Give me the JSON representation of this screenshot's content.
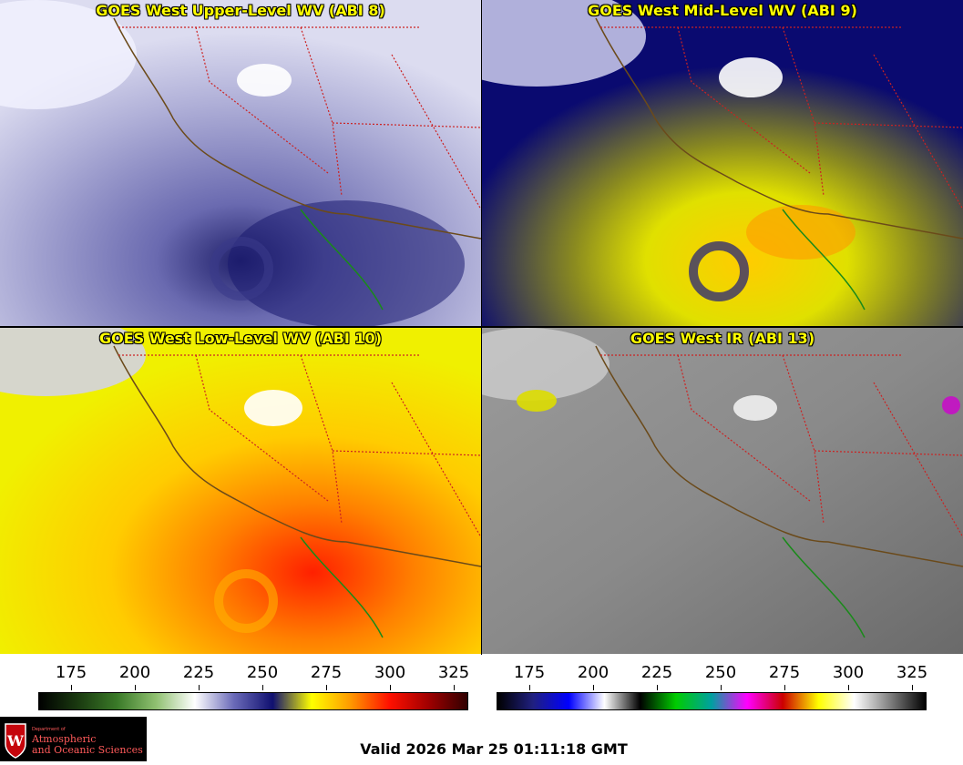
{
  "panels": [
    {
      "title": "GOES West Upper-Level WV (ABI 8)",
      "scheme": "upper"
    },
    {
      "title": "GOES West Mid-Level WV (ABI 9)",
      "scheme": "mid"
    },
    {
      "title": "GOES West Low-Level WV (ABI 10)",
      "scheme": "low"
    },
    {
      "title": "GOES West IR (ABI 13)",
      "scheme": "ir"
    }
  ],
  "wv_colorbar": {
    "ticks": [
      "175",
      "200",
      "225",
      "250",
      "275",
      "300",
      "325"
    ],
    "colors": [
      "#000000",
      "#1a3a10",
      "#3a7a28",
      "#8fc070",
      "#ffffff",
      "#6a6ab8",
      "#101070",
      "#ffff00",
      "#ff9900",
      "#ff1000",
      "#a00000",
      "#300000"
    ]
  },
  "ir_colorbar": {
    "ticks": [
      "175",
      "200",
      "225",
      "250",
      "275",
      "300",
      "325"
    ],
    "colors": [
      "#000000",
      "#202080",
      "#0000ff",
      "#ffffff",
      "#000000",
      "#00cc00",
      "#00a0a0",
      "#ff00ff",
      "#cc0000",
      "#ffff00",
      "#ffffff",
      "#808080",
      "#000000"
    ]
  },
  "logo": {
    "line1": "Department of",
    "line2": "Atmospheric",
    "line3": "and Oceanic Sciences"
  },
  "valid_time": "Valid 2026 Mar 25 01:11:18 GMT"
}
